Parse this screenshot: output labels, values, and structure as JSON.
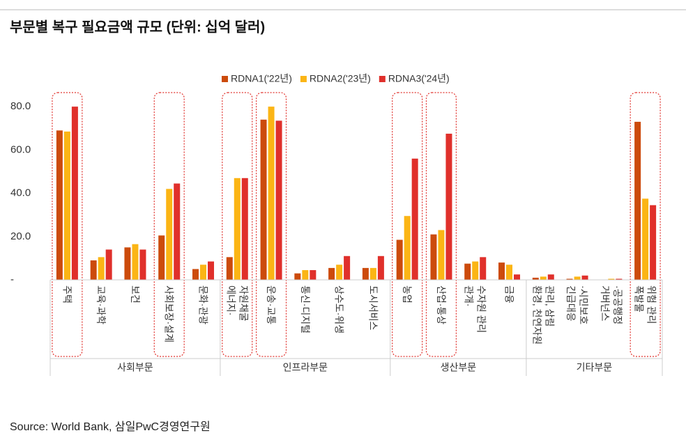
{
  "chart_data": {
    "type": "bar",
    "title": "부문별 복구 필요금액 규모 (단위: 십억 달러)",
    "source": "Source: World Bank, 삼일PwC경영연구원",
    "groups": [
      {
        "name": "사회부문",
        "categories": [
          {
            "label": "주택",
            "highlight": true
          },
          {
            "label": "교육·과학"
          },
          {
            "label": "보건"
          },
          {
            "label": "사회보장·설계",
            "highlight": true
          },
          {
            "label": "문화·관광"
          }
        ]
      },
      {
        "name": "인프라부문",
        "categories": [
          {
            "label": "에너지·\n자원채굴",
            "highlight": true
          },
          {
            "label": "운송·교통",
            "highlight": true
          },
          {
            "label": "통신·디지털"
          },
          {
            "label": "상수도·위생"
          },
          {
            "label": "도시서비스"
          }
        ]
      },
      {
        "name": "생산부문",
        "categories": [
          {
            "label": "농업",
            "highlight": true
          },
          {
            "label": "산업·통상",
            "highlight": true
          },
          {
            "label": "관개·\n수자원 관리"
          },
          {
            "label": "금융"
          }
        ]
      },
      {
        "name": "기타부문",
        "categories": [
          {
            "label": "환경, 천연자원\n관리, 삼림"
          },
          {
            "label": "긴급대응\n·시민보호"
          },
          {
            "label": "거버넌스\n·공공행정"
          },
          {
            "label": "폭발물\n위험 관리",
            "highlight": true
          }
        ]
      }
    ],
    "series": [
      {
        "name": "RDNA1('22년)",
        "color": "#cc4b0c",
        "values": [
          69,
          9,
          15,
          20.5,
          5,
          10.5,
          74,
          3,
          5.5,
          5.5,
          18.5,
          21,
          7.5,
          8,
          1,
          0.5,
          0,
          73
        ]
      },
      {
        "name": "RDNA2('23년)",
        "color": "#fbb515",
        "values": [
          68.5,
          10.5,
          16.5,
          42,
          7,
          47,
          80,
          4.5,
          7,
          5.5,
          29.5,
          23,
          8.5,
          7,
          1.5,
          1.5,
          0.5,
          37.5
        ]
      },
      {
        "name": "RDNA3('24년)",
        "color": "#e0302b",
        "values": [
          80,
          14,
          14,
          44.5,
          8.5,
          47,
          73.5,
          4.5,
          11,
          11,
          56,
          67.5,
          10.5,
          2.5,
          2.5,
          2,
          0.5,
          34.5
        ]
      }
    ],
    "ylim": [
      0,
      85
    ],
    "yticks": [
      {
        "value": 0,
        "label": "-"
      },
      {
        "value": 20,
        "label": "20.0"
      },
      {
        "value": 40,
        "label": "40.0"
      },
      {
        "value": 60,
        "label": "60.0"
      },
      {
        "value": 80,
        "label": "80.0"
      }
    ],
    "highlight_color": "#e0302b"
  }
}
